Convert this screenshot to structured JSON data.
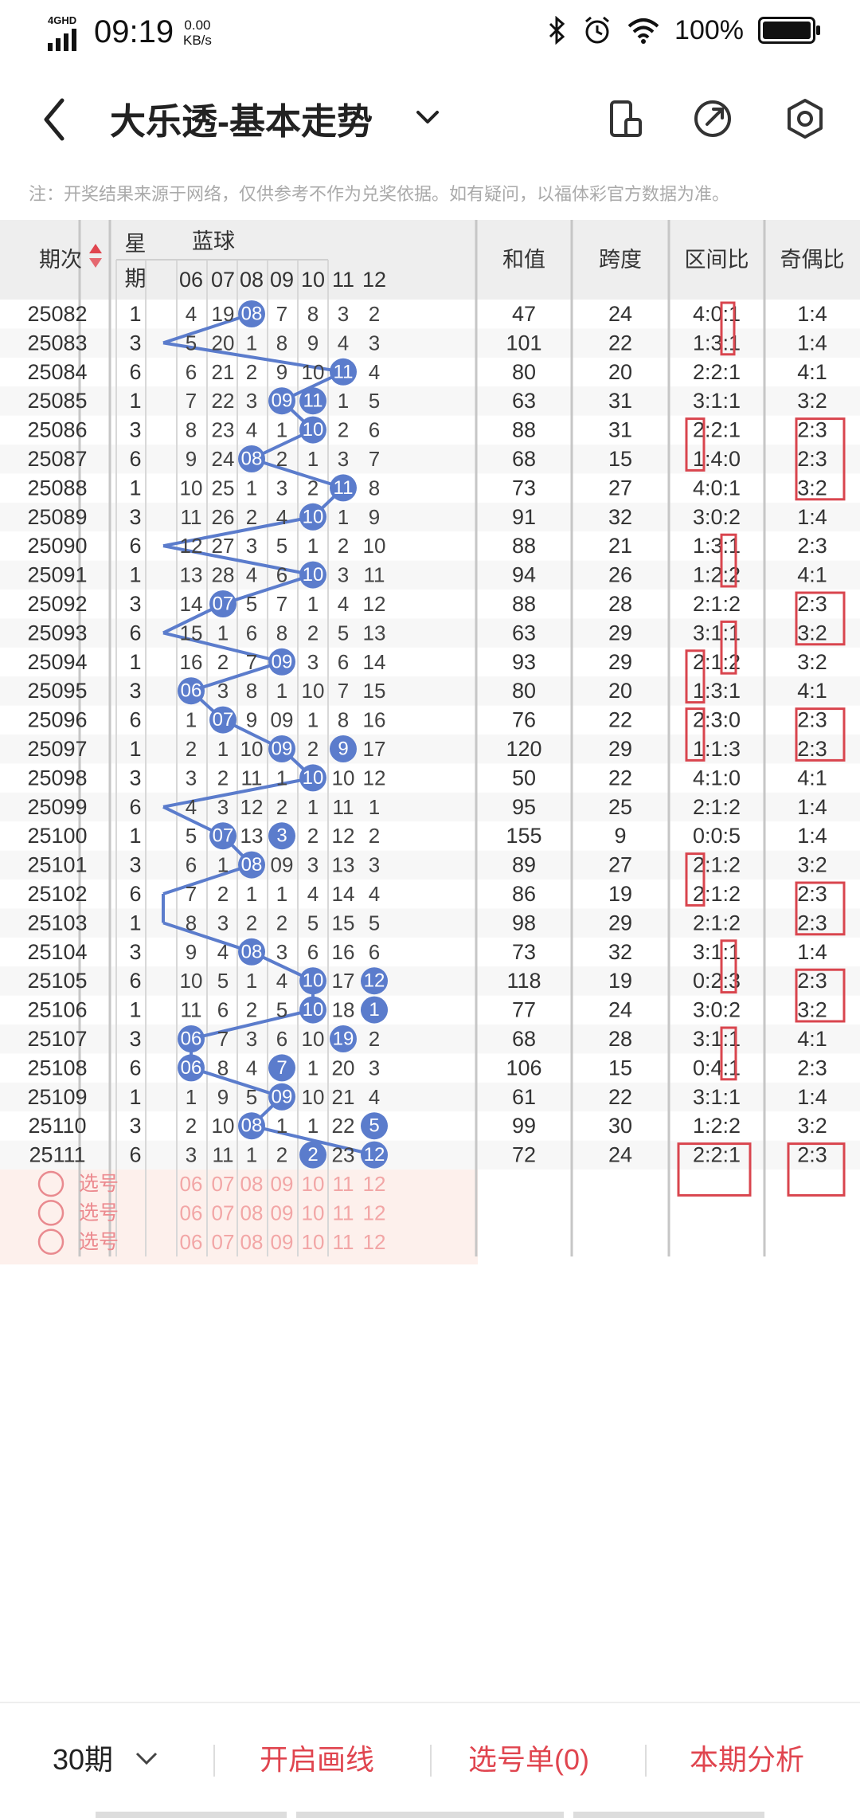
{
  "status_bar": {
    "network": "4GHD",
    "time": "09:19",
    "speed_value": "0.00",
    "speed_unit": "KB/s",
    "battery": "100%"
  },
  "header": {
    "title": "大乐透-基本走势"
  },
  "note": "注：开奖结果来源于网络，仅供参考不作为兑奖依据。如有疑问，以福体彩官方数据为准。",
  "table": {
    "col_period": "期次",
    "col_weekday_top": "星",
    "col_weekday_bottom": "期",
    "col_blue": "蓝球",
    "col_sum": "和值",
    "col_span": "跨度",
    "col_zone": "区间比",
    "col_parity": "奇偶比",
    "blue_headers": [
      "06",
      "07",
      "08",
      "09",
      "10",
      "11",
      "12"
    ],
    "rows": [
      {
        "p": "25082",
        "w": "1",
        "c": [
          "4",
          "19",
          "08",
          "7",
          "8",
          "3",
          "2"
        ],
        "h": 2,
        "s": "47",
        "k": "24",
        "z": "4:0:1",
        "o": "1:4"
      },
      {
        "p": "25083",
        "w": "3",
        "c": [
          "5",
          "20",
          "1",
          "8",
          "9",
          "4",
          "3"
        ],
        "h": -1,
        "s": "101",
        "k": "22",
        "z": "1:3:1",
        "o": "1:4"
      },
      {
        "p": "25084",
        "w": "6",
        "c": [
          "6",
          "21",
          "2",
          "9",
          "10",
          "11",
          "4"
        ],
        "h": 5,
        "s": "80",
        "k": "20",
        "z": "2:2:1",
        "o": "4:1"
      },
      {
        "p": "25085",
        "w": "1",
        "c": [
          "7",
          "22",
          "3",
          "09",
          "11",
          "1",
          "5"
        ],
        "h": 3,
        "s": "63",
        "k": "31",
        "z": "3:1:1",
        "o": "3:2"
      },
      {
        "p": "25086",
        "w": "3",
        "c": [
          "8",
          "23",
          "4",
          "1",
          "10",
          "2",
          "6"
        ],
        "h": 4,
        "s": "88",
        "k": "31",
        "z": "2:2:1",
        "o": "2:3"
      },
      {
        "p": "25087",
        "w": "6",
        "c": [
          "9",
          "24",
          "08",
          "2",
          "1",
          "3",
          "7"
        ],
        "h": 2,
        "s": "68",
        "k": "15",
        "z": "1:4:0",
        "o": "2:3"
      },
      {
        "p": "25088",
        "w": "1",
        "c": [
          "10",
          "25",
          "1",
          "3",
          "2",
          "11",
          "8"
        ],
        "h": 5,
        "s": "73",
        "k": "27",
        "z": "4:0:1",
        "o": "3:2"
      },
      {
        "p": "25089",
        "w": "3",
        "c": [
          "11",
          "26",
          "2",
          "4",
          "10",
          "1",
          "9"
        ],
        "h": 4,
        "s": "91",
        "k": "32",
        "z": "3:0:2",
        "o": "1:4"
      },
      {
        "p": "25090",
        "w": "6",
        "c": [
          "12",
          "27",
          "3",
          "5",
          "1",
          "2",
          "10"
        ],
        "h": -1,
        "s": "88",
        "k": "21",
        "z": "1:3:1",
        "o": "2:3"
      },
      {
        "p": "25091",
        "w": "1",
        "c": [
          "13",
          "28",
          "4",
          "6",
          "10",
          "3",
          "11"
        ],
        "h": 4,
        "s": "94",
        "k": "26",
        "z": "1:2:2",
        "o": "4:1"
      },
      {
        "p": "25092",
        "w": "3",
        "c": [
          "14",
          "07",
          "5",
          "7",
          "1",
          "4",
          "12"
        ],
        "h": 1,
        "s": "88",
        "k": "28",
        "z": "2:1:2",
        "o": "2:3"
      },
      {
        "p": "25093",
        "w": "6",
        "c": [
          "15",
          "1",
          "6",
          "8",
          "2",
          "5",
          "13"
        ],
        "h": -1,
        "s": "63",
        "k": "29",
        "z": "3:1:1",
        "o": "3:2"
      },
      {
        "p": "25094",
        "w": "1",
        "c": [
          "16",
          "2",
          "7",
          "09",
          "3",
          "6",
          "14"
        ],
        "h": 3,
        "s": "93",
        "k": "29",
        "z": "2:1:2",
        "o": "3:2"
      },
      {
        "p": "25095",
        "w": "3",
        "c": [
          "06",
          "3",
          "8",
          "1",
          "10",
          "7",
          "15"
        ],
        "h": 0,
        "s": "80",
        "k": "20",
        "z": "1:3:1",
        "o": "4:1"
      },
      {
        "p": "25096",
        "w": "6",
        "c": [
          "1",
          "07",
          "9",
          "09",
          "1",
          "8",
          "16"
        ],
        "h": 1,
        "s": "76",
        "k": "22",
        "z": "2:3:0",
        "o": "2:3"
      },
      {
        "p": "25097",
        "w": "1",
        "c": [
          "2",
          "1",
          "10",
          "09",
          "2",
          "9",
          "17"
        ],
        "h": 3,
        "s": "120",
        "k": "29",
        "z": "1:1:3",
        "o": "2:3"
      },
      {
        "p": "25098",
        "w": "3",
        "c": [
          "3",
          "2",
          "11",
          "1",
          "10",
          "10",
          "12"
        ],
        "h": 4,
        "s": "50",
        "k": "22",
        "z": "4:1:0",
        "o": "4:1"
      },
      {
        "p": "25099",
        "w": "6",
        "c": [
          "4",
          "3",
          "12",
          "2",
          "1",
          "11",
          "1"
        ],
        "h": -1,
        "s": "95",
        "k": "25",
        "z": "2:1:2",
        "o": "1:4"
      },
      {
        "p": "25100",
        "w": "1",
        "c": [
          "5",
          "07",
          "13",
          "3",
          "2",
          "12",
          "2"
        ],
        "h": 1,
        "s": "155",
        "k": "9",
        "z": "0:0:5",
        "o": "1:4"
      },
      {
        "p": "25101",
        "w": "3",
        "c": [
          "6",
          "1",
          "08",
          "09",
          "3",
          "13",
          "3"
        ],
        "h": 2,
        "s": "89",
        "k": "27",
        "z": "2:1:2",
        "o": "3:2"
      },
      {
        "p": "25102",
        "w": "6",
        "c": [
          "7",
          "2",
          "1",
          "1",
          "4",
          "14",
          "4"
        ],
        "h": -1,
        "s": "86",
        "k": "19",
        "z": "2:1:2",
        "o": "2:3"
      },
      {
        "p": "25103",
        "w": "1",
        "c": [
          "8",
          "3",
          "2",
          "2",
          "5",
          "15",
          "5"
        ],
        "h": -1,
        "s": "98",
        "k": "29",
        "z": "2:1:2",
        "o": "2:3"
      },
      {
        "p": "25104",
        "w": "3",
        "c": [
          "9",
          "4",
          "08",
          "3",
          "6",
          "16",
          "6"
        ],
        "h": 2,
        "s": "73",
        "k": "32",
        "z": "3:1:1",
        "o": "1:4"
      },
      {
        "p": "25105",
        "w": "6",
        "c": [
          "10",
          "5",
          "1",
          "4",
          "10",
          "17",
          "12"
        ],
        "h": 4,
        "s": "118",
        "k": "19",
        "z": "0:2:3",
        "o": "2:3"
      },
      {
        "p": "25106",
        "w": "1",
        "c": [
          "11",
          "6",
          "2",
          "5",
          "10",
          "18",
          "1"
        ],
        "h": 4,
        "s": "77",
        "k": "24",
        "z": "3:0:2",
        "o": "3:2"
      },
      {
        "p": "25107",
        "w": "3",
        "c": [
          "06",
          "7",
          "3",
          "6",
          "10",
          "19",
          "2"
        ],
        "h": 0,
        "s": "68",
        "k": "28",
        "z": "3:1:1",
        "o": "4:1"
      },
      {
        "p": "25108",
        "w": "6",
        "c": [
          "06",
          "8",
          "4",
          "7",
          "1",
          "20",
          "3"
        ],
        "h": 0,
        "s": "106",
        "k": "15",
        "z": "0:4:1",
        "o": "2:3"
      },
      {
        "p": "25109",
        "w": "1",
        "c": [
          "1",
          "9",
          "5",
          "09",
          "10",
          "21",
          "4"
        ],
        "h": 3,
        "s": "61",
        "k": "22",
        "z": "3:1:1",
        "o": "1:4"
      },
      {
        "p": "25110",
        "w": "3",
        "c": [
          "2",
          "10",
          "08",
          "1",
          "1",
          "22",
          "5"
        ],
        "h": 2,
        "s": "99",
        "k": "30",
        "z": "1:2:2",
        "o": "3:2"
      },
      {
        "p": "25111",
        "w": "6",
        "c": [
          "3",
          "11",
          "1",
          "2",
          "2",
          "23",
          "12"
        ],
        "h": 6,
        "s": "72",
        "k": "24",
        "z": "2:2:1",
        "o": "2:3"
      }
    ],
    "extra_balls": [
      {
        "row": 3,
        "col": 4
      },
      {
        "row": 15,
        "col": 5
      },
      {
        "row": 18,
        "col": 3
      },
      {
        "row": 23,
        "col": 6
      },
      {
        "row": 24,
        "col": 6
      },
      {
        "row": 25,
        "col": 5
      },
      {
        "row": 26,
        "col": 3
      },
      {
        "row": 28,
        "col": 6
      },
      {
        "row": 29,
        "col": 4
      }
    ],
    "select_label": "选号",
    "select_rows": 3
  },
  "bottom": {
    "periods": "30期",
    "draw_lines": "开启画线",
    "selection": "选号单(0)",
    "analysis": "本期分析"
  },
  "colors": {
    "ball": "#5b7ccc",
    "line": "#5b7ccc",
    "accent": "#e0454f",
    "select_bg": "#fdf0ec",
    "header_bg": "#eeeeee",
    "mark": "#d9454e"
  }
}
